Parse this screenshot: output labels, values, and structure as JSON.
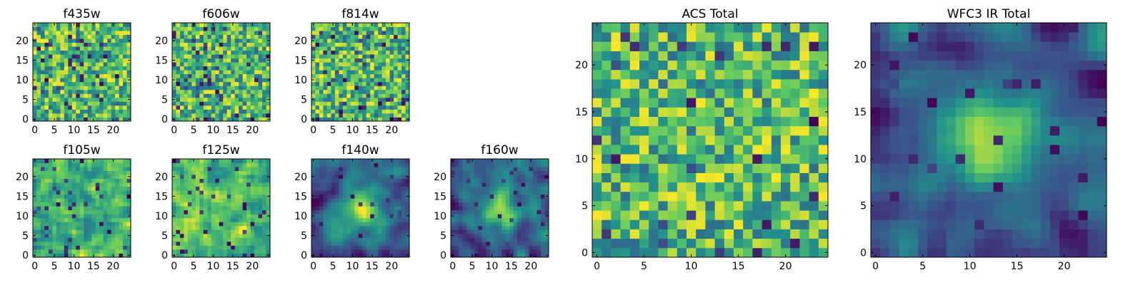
{
  "figure": {
    "background": "#ffffff"
  },
  "colormap": {
    "name": "viridis",
    "stops": [
      "#440154",
      "#3b528b",
      "#21918c",
      "#5ec962",
      "#fde725"
    ]
  },
  "chart_data": [
    {
      "type": "heatmap",
      "title": "f435w",
      "grid_size": 25,
      "xlim": [
        0,
        24
      ],
      "ylim": [
        0,
        24
      ],
      "xticks": [
        0,
        5,
        10,
        15,
        20
      ],
      "yticks": [
        0,
        5,
        10,
        15,
        20
      ],
      "pattern": "noise",
      "seed": 11,
      "dark_fraction": 0.06
    },
    {
      "type": "heatmap",
      "title": "f606w",
      "grid_size": 25,
      "xlim": [
        0,
        24
      ],
      "ylim": [
        0,
        24
      ],
      "xticks": [
        0,
        5,
        10,
        15,
        20
      ],
      "yticks": [
        0,
        5,
        10,
        15,
        20
      ],
      "pattern": "noise",
      "seed": 23,
      "dark_fraction": 0.06
    },
    {
      "type": "heatmap",
      "title": "f814w",
      "grid_size": 25,
      "xlim": [
        0,
        24
      ],
      "ylim": [
        0,
        24
      ],
      "xticks": [
        0,
        5,
        10,
        15,
        20
      ],
      "yticks": [
        0,
        5,
        10,
        15,
        20
      ],
      "pattern": "noise",
      "seed": 37,
      "dark_fraction": 0.05
    },
    {
      "type": "heatmap",
      "title": "f105w",
      "grid_size": 25,
      "xlim": [
        0,
        24
      ],
      "ylim": [
        0,
        24
      ],
      "xticks": [
        0,
        5,
        10,
        15,
        20
      ],
      "yticks": [
        0,
        5,
        10,
        15,
        20
      ],
      "pattern": "smooth",
      "seed": 41,
      "dark_fraction": 0.05
    },
    {
      "type": "heatmap",
      "title": "f125w",
      "grid_size": 25,
      "xlim": [
        0,
        24
      ],
      "ylim": [
        0,
        24
      ],
      "xticks": [
        0,
        5,
        10,
        15,
        20
      ],
      "yticks": [
        0,
        5,
        10,
        15,
        20
      ],
      "pattern": "smooth",
      "seed": 53,
      "dark_fraction": 0.06
    },
    {
      "type": "heatmap",
      "title": "f140w",
      "grid_size": 25,
      "xlim": [
        0,
        24
      ],
      "ylim": [
        0,
        24
      ],
      "xticks": [
        0,
        5,
        10,
        15,
        20
      ],
      "yticks": [
        0,
        5,
        10,
        15,
        20
      ],
      "pattern": "source",
      "seed": 67,
      "dark_fraction": 0.03
    },
    {
      "type": "heatmap",
      "title": "f160w",
      "grid_size": 25,
      "xlim": [
        0,
        24
      ],
      "ylim": [
        0,
        24
      ],
      "xticks": [
        0,
        5,
        10,
        15,
        20
      ],
      "yticks": [
        0,
        5,
        10,
        15,
        20
      ],
      "pattern": "source",
      "seed": 79,
      "dark_fraction": 0.03
    },
    {
      "type": "heatmap",
      "title": "ACS Total",
      "grid_size": 25,
      "xlim": [
        0,
        24
      ],
      "ylim": [
        0,
        24
      ],
      "xticks": [
        0,
        5,
        10,
        15,
        20
      ],
      "yticks": [
        0,
        5,
        10,
        15,
        20
      ],
      "pattern": "noise",
      "seed": 97,
      "dark_fraction": 0.025
    },
    {
      "type": "heatmap",
      "title": "WFC3 IR Total",
      "grid_size": 25,
      "xlim": [
        0,
        24
      ],
      "ylim": [
        0,
        24
      ],
      "xticks": [
        0,
        5,
        10,
        15,
        20
      ],
      "yticks": [
        0,
        5,
        10,
        15,
        20
      ],
      "pattern": "source",
      "seed": 113,
      "dark_fraction": 0.03
    }
  ]
}
